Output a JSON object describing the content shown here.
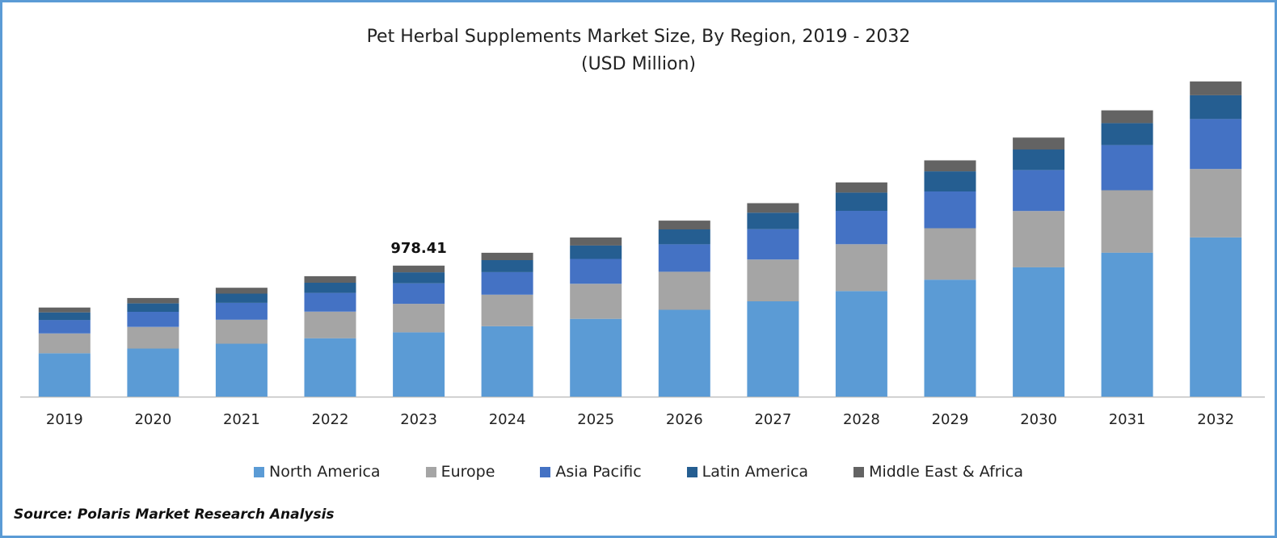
{
  "chart_data": {
    "type": "bar",
    "stacked": true,
    "title": "Pet Herbal Supplements Market Size, By Region, 2019 - 2032",
    "subtitle": "(USD Million)",
    "categories": [
      "2019",
      "2020",
      "2021",
      "2022",
      "2023",
      "2024",
      "2025",
      "2026",
      "2027",
      "2028",
      "2029",
      "2030",
      "2031",
      "2032"
    ],
    "series": [
      {
        "name": "North America",
        "color": "#5b9bd5",
        "values": [
          324,
          359,
          395,
          436,
          480,
          526,
          581,
          648,
          712,
          788,
          873,
          966,
          1075,
          1188
        ]
      },
      {
        "name": "Europe",
        "color": "#a5a5a5",
        "values": [
          147,
          161,
          179,
          198,
          213,
          235,
          261,
          284,
          311,
          350,
          384,
          420,
          466,
          511
        ]
      },
      {
        "name": "Asia Pacific",
        "color": "#4472c4",
        "values": [
          101,
          113,
          126,
          140,
          153,
          168,
          186,
          205,
          227,
          249,
          275,
          305,
          337,
          374
        ]
      },
      {
        "name": "Latin America",
        "color": "#255e91",
        "values": [
          57,
          63,
          69,
          76,
          82,
          90,
          100,
          111,
          123,
          136,
          150,
          154,
          164,
          177
        ]
      },
      {
        "name": "Middle East & Africa",
        "color": "#636363",
        "values": [
          36,
          40,
          44,
          49,
          50,
          55,
          60,
          66,
          71,
          76,
          82,
          89,
          95,
          103
        ]
      }
    ],
    "annotations": [
      {
        "category": "2023",
        "text": "978.41"
      }
    ],
    "ylim": [
      0,
      2400
    ],
    "grid": false,
    "legend_position": "bottom"
  },
  "source": "Source: Polaris Market Research Analysis"
}
